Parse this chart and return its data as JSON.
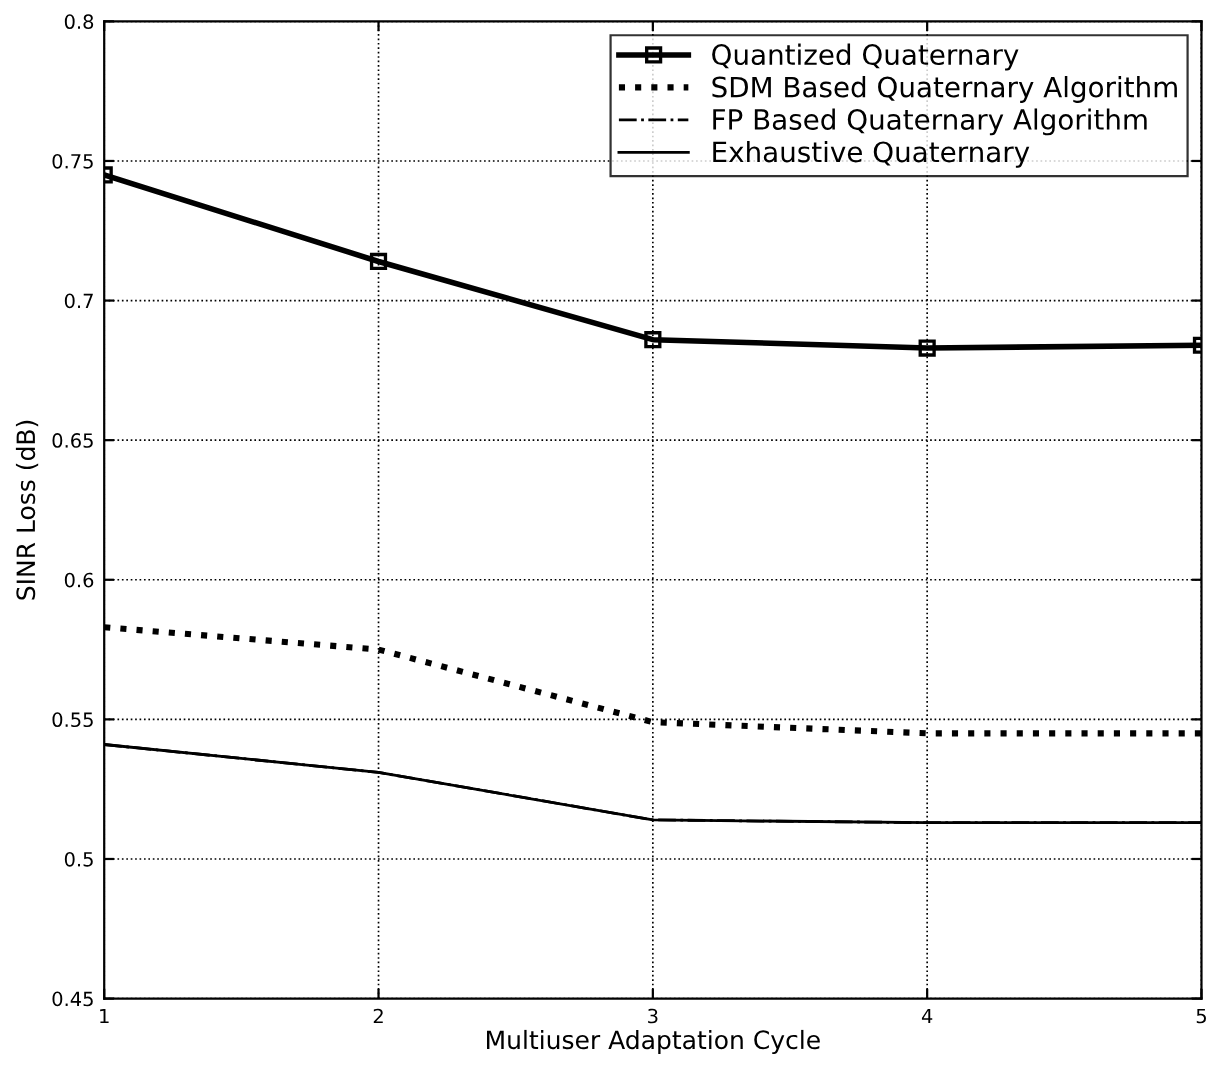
{
  "chart_data": {
    "type": "line",
    "xlabel": "Multiuser Adaptation Cycle",
    "ylabel": "SINR Loss (dB)",
    "x": [
      1,
      2,
      3,
      4,
      5
    ],
    "series": [
      {
        "name": "Quantized Quaternary",
        "color": "#000000",
        "values": [
          0.745,
          0.714,
          0.686,
          0.683,
          0.684
        ],
        "marker": "square",
        "line_style": "solid"
      },
      {
        "name": "SDM Based Quaternary Algorithm",
        "color": "#000000",
        "values": [
          0.583,
          0.575,
          0.549,
          0.545,
          0.545
        ],
        "marker": "none",
        "line_style": "dotted"
      },
      {
        "name": "FP Based Quaternary Algorithm",
        "color": "#000000",
        "values": [
          0.541,
          0.531,
          0.514,
          0.513,
          0.513
        ],
        "marker": "none",
        "line_style": "dashdot"
      },
      {
        "name": "Exhaustive Quaternary",
        "color": "#000000",
        "values": [
          0.541,
          0.531,
          0.514,
          0.513,
          0.513
        ],
        "marker": "none",
        "line_style": "solid"
      }
    ],
    "xlim": [
      1,
      5
    ],
    "ylim": [
      0.45,
      0.8
    ],
    "xticks": [
      1,
      2,
      3,
      4,
      5
    ],
    "yticks": [
      0.45,
      0.5,
      0.55,
      0.6,
      0.65,
      0.7,
      0.75,
      0.8
    ],
    "grid": true,
    "legend": "top right"
  }
}
